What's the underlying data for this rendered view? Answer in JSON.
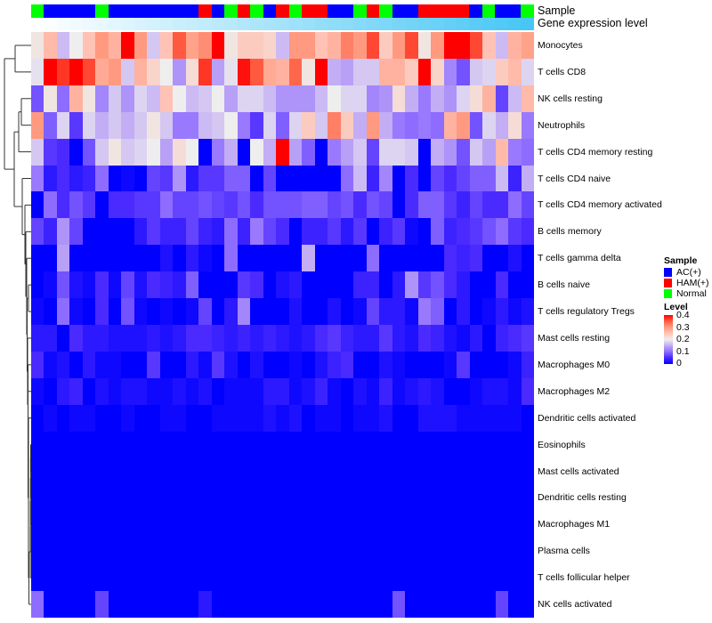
{
  "annotations": {
    "sample_label": "Sample",
    "gene_label": "Gene expression level",
    "gene_gradient": [
      "#ffffff",
      "#48c6f6"
    ]
  },
  "legend": {
    "sample_title": "Sample",
    "sample_items": [
      {
        "label": "AC(+)",
        "code": "A",
        "color": "#0000FF"
      },
      {
        "label": "HAM(+)",
        "code": "H",
        "color": "#FF0000"
      },
      {
        "label": "Normal",
        "code": "N",
        "color": "#00FF00"
      }
    ],
    "level_title": "Level",
    "level_ticks": [
      "0.4",
      "0.3",
      "0.2",
      "0.1",
      "0"
    ]
  },
  "chart_data": {
    "type": "heatmap",
    "title": "",
    "value_range": [
      0,
      0.4
    ],
    "color_scale": {
      "low": "#0000FF",
      "mid": "#EEEEEE",
      "high": "#FF0000"
    },
    "column_samples": [
      "N",
      "A",
      "A",
      "A",
      "A",
      "N",
      "A",
      "A",
      "A",
      "A",
      "A",
      "A",
      "A",
      "H",
      "A",
      "N",
      "H",
      "N",
      "A",
      "H",
      "N",
      "H",
      "H",
      "A",
      "A",
      "N",
      "H",
      "N",
      "A",
      "A",
      "H",
      "H",
      "H",
      "H",
      "A",
      "N",
      "A",
      "A",
      "N"
    ],
    "rows": [
      "Monocytes",
      "T cells CD8",
      "NK cells resting",
      "Neutrophils",
      "T cells CD4 memory resting",
      "T cells CD4 naive",
      "T cells CD4 memory activated",
      "B cells memory",
      "T cells gamma delta",
      "B cells naive",
      "T cells regulatory  Tregs",
      "Mast cells resting",
      "Macrophages M0",
      "Macrophages M2",
      "Dendritic cells activated",
      "Eosinophils",
      "Mast cells activated",
      "Dendritic cells resting",
      "Macrophages M1",
      "Plasma cells",
      "T cells follicular helper",
      "NK cells activated"
    ],
    "values": [
      [
        0.21,
        0.26,
        0.16,
        0.2,
        0.25,
        0.3,
        0.27,
        0.4,
        0.3,
        0.17,
        0.25,
        0.35,
        0.29,
        0.31,
        0.4,
        0.21,
        0.24,
        0.24,
        0.23,
        0.16,
        0.3,
        0.3,
        0.25,
        0.27,
        0.32,
        0.3,
        0.36,
        0.24,
        0.3,
        0.36,
        0.21,
        0.3,
        0.4,
        0.4,
        0.36,
        0.25,
        0.16,
        0.27,
        0.29
      ],
      [
        0.19,
        0.4,
        0.37,
        0.4,
        0.36,
        0.28,
        0.3,
        0.17,
        0.27,
        0.23,
        0.2,
        0.13,
        0.22,
        0.37,
        0.14,
        0.19,
        0.39,
        0.35,
        0.28,
        0.27,
        0.34,
        0.21,
        0.4,
        0.15,
        0.14,
        0.17,
        0.17,
        0.27,
        0.27,
        0.24,
        0.4,
        0.23,
        0.12,
        0.08,
        0.17,
        0.18,
        0.24,
        0.26,
        0.18
      ],
      [
        0.08,
        0.21,
        0.1,
        0.27,
        0.21,
        0.12,
        0.17,
        0.13,
        0.18,
        0.16,
        0.25,
        0.2,
        0.16,
        0.17,
        0.2,
        0.14,
        0.18,
        0.18,
        0.16,
        0.13,
        0.13,
        0.13,
        0.16,
        0.2,
        0.18,
        0.18,
        0.12,
        0.13,
        0.22,
        0.15,
        0.11,
        0.15,
        0.13,
        0.18,
        0.22,
        0.27,
        0.07,
        0.16,
        0.26
      ],
      [
        0.3,
        0.09,
        0.18,
        0.06,
        0.18,
        0.15,
        0.17,
        0.15,
        0.17,
        0.21,
        0.17,
        0.11,
        0.11,
        0.16,
        0.17,
        0.2,
        0.11,
        0.06,
        0.18,
        0.09,
        0.18,
        0.24,
        0.17,
        0.32,
        0.24,
        0.15,
        0.3,
        0.15,
        0.11,
        0.1,
        0.11,
        0.1,
        0.27,
        0.3,
        0.08,
        0.18,
        0.15,
        0.22,
        0.11
      ],
      [
        0.17,
        0.06,
        0.05,
        0,
        0.08,
        0.17,
        0.21,
        0.17,
        0.18,
        0.2,
        0.14,
        0.22,
        0.2,
        0,
        0.11,
        0.15,
        0,
        0.2,
        0.15,
        0.4,
        0.14,
        0.09,
        0,
        0.11,
        0.14,
        0.17,
        0.07,
        0.18,
        0.18,
        0.17,
        0,
        0.15,
        0.13,
        0.08,
        0.17,
        0.14,
        0.26,
        0.11,
        0.1
      ],
      [
        0.11,
        0.03,
        0.05,
        0.03,
        0.04,
        0.1,
        0,
        0.01,
        0,
        0.07,
        0.06,
        0.13,
        0.03,
        0.06,
        0.06,
        0.09,
        0.09,
        0,
        0.07,
        0,
        0,
        0,
        0,
        0,
        0.1,
        0.16,
        0.04,
        0.12,
        0,
        0.05,
        0,
        0.07,
        0.05,
        0.07,
        0.09,
        0.09,
        0.16,
        0.04,
        0.15
      ],
      [
        0,
        0.1,
        0.05,
        0.08,
        0.06,
        0,
        0.05,
        0.05,
        0.06,
        0.06,
        0.1,
        0.07,
        0.07,
        0.08,
        0.07,
        0.06,
        0.08,
        0.05,
        0.08,
        0.08,
        0.08,
        0.09,
        0.09,
        0.07,
        0.08,
        0.05,
        0.08,
        0.07,
        0,
        0.05,
        0.09,
        0.09,
        0.06,
        0.04,
        0.07,
        0.05,
        0.05,
        0.1,
        0.07
      ],
      [
        0.07,
        0.04,
        0.13,
        0.07,
        0,
        0,
        0,
        0,
        0.03,
        0.06,
        0.04,
        0.04,
        0.07,
        0.04,
        0.03,
        0.1,
        0.04,
        0.11,
        0.07,
        0.05,
        0,
        0.04,
        0.04,
        0.06,
        0.03,
        0.06,
        0,
        0.04,
        0.06,
        0.01,
        0,
        0.09,
        0.04,
        0.05,
        0.06,
        0.08,
        0.1,
        0.06,
        0.05
      ],
      [
        0,
        0,
        0.14,
        0,
        0,
        0,
        0,
        0,
        0,
        0,
        0.02,
        0,
        0.03,
        0.01,
        0,
        0.1,
        0,
        0,
        0,
        0,
        0,
        0.15,
        0,
        0,
        0,
        0,
        0.1,
        0,
        0,
        0,
        0,
        0,
        0.05,
        0.04,
        0.05,
        0,
        0,
        0.02,
        0
      ],
      [
        0,
        0.01,
        0.08,
        0.02,
        0.01,
        0.05,
        0.01,
        0.07,
        0.02,
        0.05,
        0.04,
        0.03,
        0.09,
        0,
        0,
        0,
        0.06,
        0.05,
        0,
        0.02,
        0.03,
        0,
        0,
        0,
        0,
        0.04,
        0.04,
        0,
        0.03,
        0.13,
        0.06,
        0.08,
        0.05,
        0.03,
        0,
        0,
        0.05,
        0,
        0
      ],
      [
        0.01,
        0,
        0.1,
        0.01,
        0,
        0.05,
        0,
        0.08,
        0.01,
        0,
        0.01,
        0,
        0.01,
        0.07,
        0,
        0.03,
        0.12,
        0,
        0,
        0,
        0.02,
        0,
        0,
        0.02,
        0,
        0.01,
        0.07,
        0.03,
        0.03,
        0.01,
        0.11,
        0.09,
        0,
        0.03,
        0,
        0.01,
        0.03,
        0.01,
        0.02
      ],
      [
        0.03,
        0.03,
        0,
        0.05,
        0.03,
        0.03,
        0.02,
        0.02,
        0.02,
        0.03,
        0.02,
        0.03,
        0.05,
        0.05,
        0.04,
        0.03,
        0.04,
        0.03,
        0.04,
        0.03,
        0.02,
        0.03,
        0.05,
        0.06,
        0.04,
        0.03,
        0.03,
        0.06,
        0.03,
        0.02,
        0.05,
        0.04,
        0.02,
        0.01,
        0.03,
        0,
        0.04,
        0.05,
        0.06
      ],
      [
        0.05,
        0.01,
        0.02,
        0,
        0.03,
        0.01,
        0.01,
        0,
        0,
        0.06,
        0,
        0,
        0.03,
        0.01,
        0.06,
        0.02,
        0,
        0.02,
        0,
        0,
        0.01,
        0,
        0.02,
        0.04,
        0.05,
        0,
        0,
        0.02,
        0.01,
        0,
        0,
        0,
        0.01,
        0.06,
        0,
        0,
        0,
        0.01,
        0.04
      ],
      [
        0.01,
        0,
        0.03,
        0.04,
        0,
        0.02,
        0.01,
        0.02,
        0.02,
        0.01,
        0.01,
        0.02,
        0.01,
        0.02,
        0,
        0.01,
        0.01,
        0.01,
        0.03,
        0.03,
        0.01,
        0.02,
        0.04,
        0.01,
        0,
        0.02,
        0.01,
        0.04,
        0.01,
        0.02,
        0.03,
        0.02,
        0,
        0,
        0.01,
        0.02,
        0.02,
        0.01,
        0.05
      ],
      [
        0,
        0.01,
        0,
        0.01,
        0.01,
        0,
        0,
        0.01,
        0,
        0,
        0.01,
        0.01,
        0,
        0,
        0.01,
        0.01,
        0.01,
        0.01,
        0.02,
        0.01,
        0.02,
        0,
        0.01,
        0.01,
        0,
        0.01,
        0.01,
        0.02,
        0,
        0,
        0.02,
        0.02,
        0.02,
        0.01,
        0.01,
        0.01,
        0.01,
        0.01,
        0
      ],
      [
        0,
        0,
        0,
        0,
        0,
        0,
        0,
        0,
        0,
        0,
        0,
        0,
        0,
        0,
        0,
        0,
        0,
        0,
        0,
        0,
        0,
        0,
        0,
        0,
        0,
        0,
        0,
        0,
        0,
        0,
        0,
        0,
        0,
        0,
        0,
        0,
        0,
        0,
        0
      ],
      [
        0,
        0,
        0,
        0,
        0,
        0,
        0,
        0,
        0,
        0,
        0,
        0,
        0,
        0,
        0,
        0,
        0,
        0,
        0,
        0,
        0,
        0,
        0,
        0,
        0,
        0,
        0,
        0,
        0,
        0,
        0,
        0,
        0,
        0,
        0,
        0,
        0,
        0,
        0
      ],
      [
        0,
        0,
        0,
        0,
        0,
        0,
        0,
        0,
        0,
        0,
        0,
        0,
        0,
        0,
        0,
        0,
        0,
        0,
        0,
        0,
        0,
        0,
        0,
        0,
        0,
        0,
        0,
        0,
        0,
        0,
        0,
        0,
        0,
        0,
        0,
        0,
        0,
        0,
        0
      ],
      [
        0,
        0,
        0,
        0,
        0,
        0,
        0,
        0,
        0,
        0,
        0,
        0,
        0,
        0,
        0,
        0,
        0,
        0,
        0,
        0,
        0,
        0,
        0,
        0,
        0,
        0,
        0,
        0,
        0,
        0,
        0,
        0,
        0,
        0,
        0,
        0,
        0,
        0,
        0
      ],
      [
        0,
        0,
        0,
        0,
        0,
        0,
        0,
        0,
        0,
        0,
        0,
        0,
        0,
        0,
        0,
        0,
        0,
        0,
        0,
        0,
        0,
        0,
        0,
        0,
        0,
        0,
        0,
        0,
        0,
        0,
        0,
        0,
        0,
        0,
        0,
        0,
        0,
        0,
        0
      ],
      [
        0,
        0,
        0,
        0,
        0,
        0,
        0,
        0,
        0,
        0,
        0,
        0,
        0,
        0,
        0,
        0,
        0,
        0,
        0,
        0,
        0,
        0,
        0,
        0,
        0,
        0,
        0,
        0,
        0,
        0,
        0,
        0,
        0,
        0,
        0,
        0,
        0,
        0,
        0
      ],
      [
        0.1,
        0,
        0,
        0,
        0,
        0.07,
        0,
        0,
        0,
        0,
        0,
        0,
        0,
        0.03,
        0,
        0,
        0,
        0,
        0,
        0,
        0,
        0,
        0,
        0,
        0,
        0,
        0,
        0,
        0.08,
        0,
        0,
        0,
        0,
        0,
        0,
        0,
        0.07,
        0,
        0
      ]
    ]
  }
}
